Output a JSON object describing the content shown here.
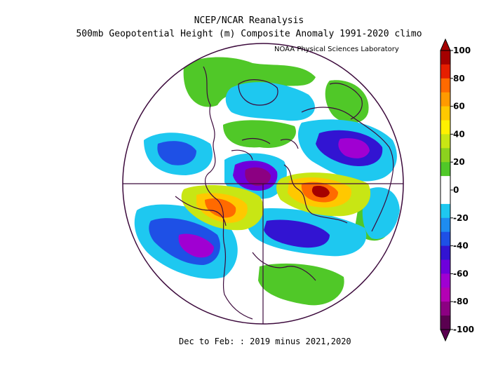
{
  "header": {
    "line1": "NCEP/NCAR Reanalysis",
    "line2": "500mb Geopotential Height (m) Composite Anomaly 1991-2020 climo",
    "credit": "NOAA Physical Sciences Laboratory"
  },
  "footer": {
    "period": "Dec to Feb: : 2019 minus 2021,2020"
  },
  "colorbar": {
    "ticks": [
      "100",
      "80",
      "60",
      "40",
      "20",
      "0",
      "-20",
      "-40",
      "-60",
      "-80",
      "-100"
    ],
    "colors": {
      "p100": "#a50000",
      "p90": "#e61e00",
      "p80": "#ff6a00",
      "p70": "#ff9a00",
      "p60": "#ffc800",
      "p50": "#fff000",
      "p40": "#c8e614",
      "p30": "#8cd21e",
      "p20": "#50c828",
      "p10": "#ffffff",
      "m10": "#ffffff",
      "m20": "#1ec8f0",
      "m30": "#1e8cf0",
      "m40": "#1e50e6",
      "m50": "#3214d2",
      "m60": "#6e00dc",
      "m70": "#a000d2",
      "m80": "#b400b4",
      "m90": "#8c0082",
      "m100": "#5a0050"
    }
  },
  "map": {
    "projection": "north-polar-stereographic",
    "colors": {
      "outline": "#3c0a3c",
      "coast": "#3c0a3c",
      "ocean": "#ffffff"
    }
  }
}
